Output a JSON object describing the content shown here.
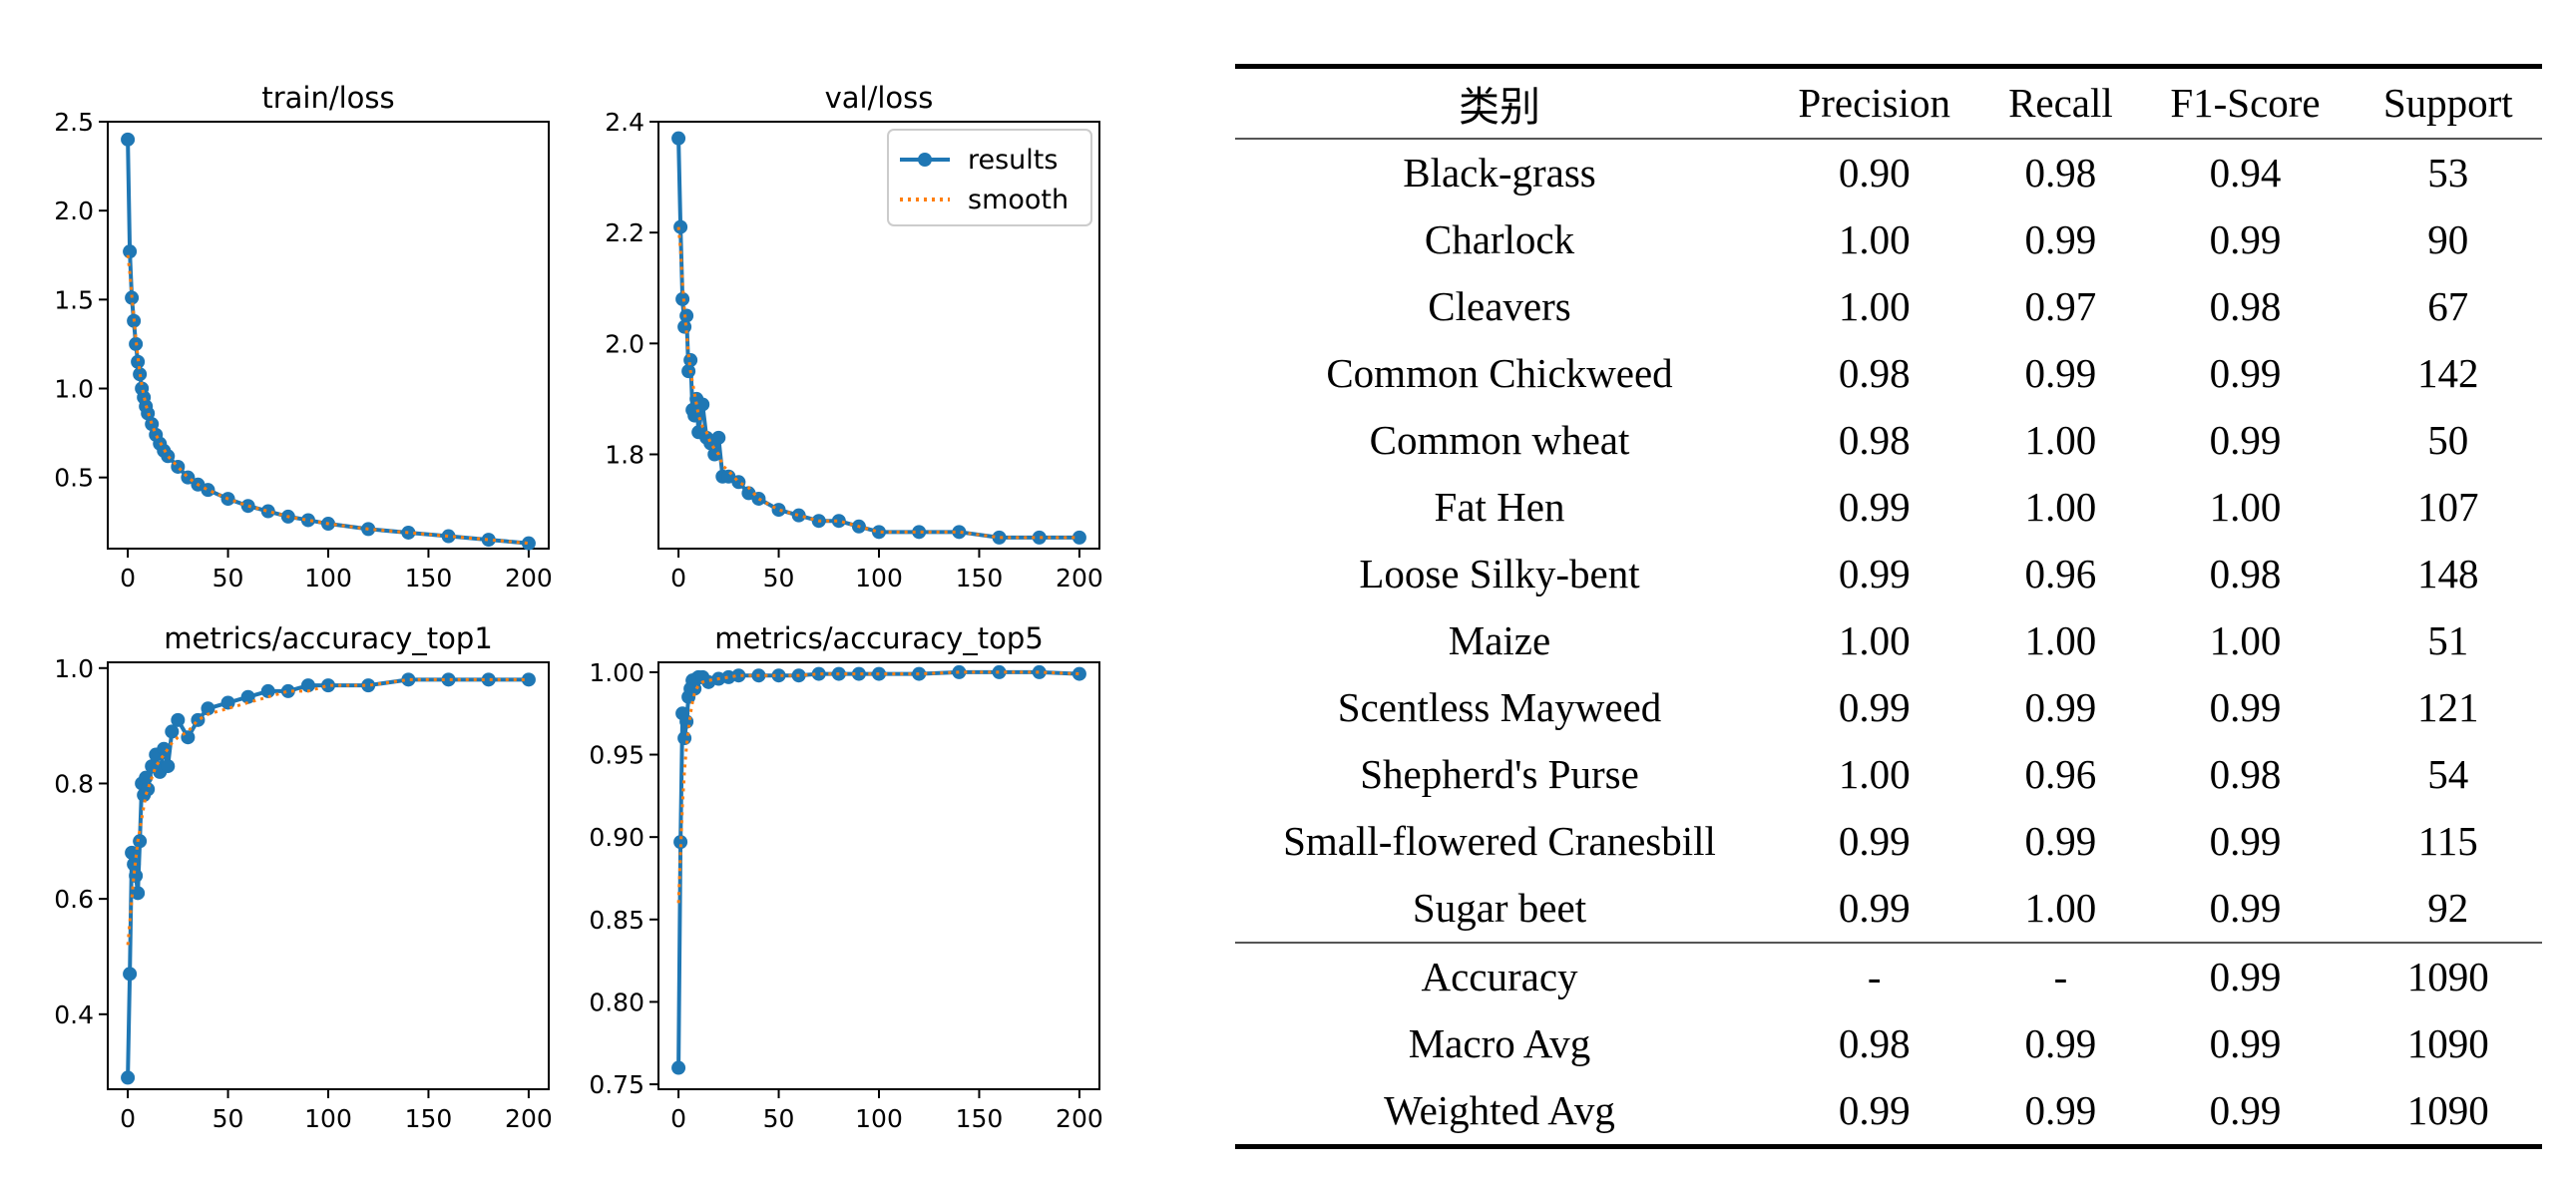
{
  "colors": {
    "results": "#1f77b4",
    "smooth": "#ff7f0e"
  },
  "chart_data": [
    {
      "type": "line",
      "title": "train/loss",
      "xlim": [
        -10,
        210
      ],
      "ylim": [
        0.1,
        2.5
      ],
      "xticks": [
        0,
        50,
        100,
        150,
        200
      ],
      "yticks": [
        0.5,
        1.0,
        1.5,
        2.0,
        2.5
      ],
      "ytick_labels": [
        "0.5",
        "1.0",
        "1.5",
        "2.0",
        "2.5"
      ],
      "grid": false,
      "legend": "none",
      "series": [
        {
          "name": "results",
          "kind": "points",
          "x": [
            0,
            1,
            2,
            3,
            4,
            5,
            6,
            7,
            8,
            9,
            10,
            12,
            14,
            16,
            18,
            20,
            25,
            30,
            35,
            40,
            50,
            60,
            70,
            80,
            90,
            100,
            120,
            140,
            160,
            180,
            200
          ],
          "y": [
            2.4,
            1.77,
            1.51,
            1.38,
            1.25,
            1.15,
            1.08,
            1.0,
            0.95,
            0.9,
            0.86,
            0.8,
            0.74,
            0.69,
            0.65,
            0.62,
            0.56,
            0.5,
            0.46,
            0.43,
            0.38,
            0.34,
            0.31,
            0.28,
            0.26,
            0.24,
            0.21,
            0.19,
            0.17,
            0.15,
            0.13
          ]
        },
        {
          "name": "smooth",
          "kind": "dotted",
          "x": [
            0,
            1,
            2,
            3,
            4,
            5,
            6,
            7,
            8,
            9,
            10,
            12,
            14,
            16,
            18,
            20,
            25,
            30,
            35,
            40,
            50,
            60,
            70,
            80,
            90,
            100,
            120,
            140,
            160,
            180,
            200
          ],
          "y": [
            1.75,
            1.65,
            1.52,
            1.4,
            1.28,
            1.18,
            1.09,
            1.02,
            0.96,
            0.91,
            0.87,
            0.8,
            0.74,
            0.7,
            0.66,
            0.62,
            0.56,
            0.5,
            0.46,
            0.43,
            0.38,
            0.34,
            0.31,
            0.28,
            0.26,
            0.24,
            0.21,
            0.19,
            0.17,
            0.15,
            0.13
          ]
        }
      ]
    },
    {
      "type": "line",
      "title": "val/loss",
      "xlim": [
        -10,
        210
      ],
      "ylim": [
        1.63,
        2.4
      ],
      "xticks": [
        0,
        50,
        100,
        150,
        200
      ],
      "yticks": [
        1.8,
        2.0,
        2.2,
        2.4
      ],
      "ytick_labels": [
        "1.8",
        "2.0",
        "2.2",
        "2.4"
      ],
      "grid": false,
      "legend": "top-right",
      "series": [
        {
          "name": "results",
          "kind": "points",
          "x": [
            0,
            1,
            2,
            3,
            4,
            5,
            6,
            7,
            8,
            9,
            10,
            12,
            14,
            16,
            18,
            20,
            22,
            25,
            30,
            35,
            40,
            50,
            60,
            70,
            80,
            90,
            100,
            120,
            140,
            160,
            180,
            200
          ],
          "y": [
            2.37,
            2.21,
            2.08,
            2.03,
            2.05,
            1.95,
            1.97,
            1.88,
            1.87,
            1.9,
            1.84,
            1.89,
            1.83,
            1.82,
            1.8,
            1.83,
            1.76,
            1.76,
            1.75,
            1.73,
            1.72,
            1.7,
            1.69,
            1.68,
            1.68,
            1.67,
            1.66,
            1.66,
            1.66,
            1.65,
            1.65,
            1.65
          ]
        },
        {
          "name": "smooth",
          "kind": "dotted",
          "x": [
            0,
            1,
            2,
            3,
            4,
            5,
            6,
            7,
            8,
            9,
            10,
            12,
            14,
            16,
            18,
            20,
            22,
            25,
            30,
            35,
            40,
            50,
            60,
            70,
            80,
            90,
            100,
            120,
            140,
            160,
            180,
            200
          ],
          "y": [
            2.21,
            2.17,
            2.11,
            2.06,
            2.02,
            1.98,
            1.95,
            1.93,
            1.91,
            1.89,
            1.87,
            1.85,
            1.84,
            1.82,
            1.81,
            1.8,
            1.78,
            1.77,
            1.75,
            1.74,
            1.72,
            1.7,
            1.69,
            1.68,
            1.68,
            1.67,
            1.66,
            1.66,
            1.66,
            1.65,
            1.65,
            1.65
          ]
        }
      ]
    },
    {
      "type": "line",
      "title": "metrics/accuracy_top1",
      "xlim": [
        -10,
        210
      ],
      "ylim": [
        0.27,
        1.01
      ],
      "xticks": [
        0,
        50,
        100,
        150,
        200
      ],
      "yticks": [
        0.4,
        0.6,
        0.8,
        1.0
      ],
      "ytick_labels": [
        "0.4",
        "0.6",
        "0.8",
        "1.0"
      ],
      "grid": false,
      "legend": "none",
      "series": [
        {
          "name": "results",
          "kind": "points",
          "x": [
            0,
            1,
            2,
            3,
            4,
            5,
            6,
            7,
            8,
            9,
            10,
            12,
            14,
            16,
            18,
            20,
            22,
            25,
            30,
            35,
            40,
            50,
            60,
            70,
            80,
            90,
            100,
            120,
            140,
            160,
            180,
            200
          ],
          "y": [
            0.29,
            0.47,
            0.68,
            0.66,
            0.64,
            0.61,
            0.7,
            0.8,
            0.78,
            0.81,
            0.79,
            0.83,
            0.85,
            0.82,
            0.86,
            0.83,
            0.89,
            0.91,
            0.88,
            0.91,
            0.93,
            0.94,
            0.95,
            0.96,
            0.96,
            0.97,
            0.97,
            0.97,
            0.98,
            0.98,
            0.98,
            0.98
          ]
        },
        {
          "name": "smooth",
          "kind": "dotted",
          "x": [
            0,
            1,
            2,
            3,
            4,
            5,
            6,
            7,
            8,
            9,
            10,
            12,
            14,
            16,
            18,
            20,
            22,
            25,
            30,
            35,
            40,
            50,
            60,
            70,
            80,
            90,
            100,
            120,
            140,
            160,
            180,
            200
          ],
          "y": [
            0.52,
            0.56,
            0.6,
            0.64,
            0.67,
            0.7,
            0.72,
            0.74,
            0.76,
            0.78,
            0.79,
            0.81,
            0.83,
            0.84,
            0.85,
            0.86,
            0.87,
            0.88,
            0.89,
            0.91,
            0.92,
            0.93,
            0.94,
            0.95,
            0.96,
            0.96,
            0.97,
            0.97,
            0.98,
            0.98,
            0.98,
            0.98
          ]
        }
      ]
    },
    {
      "type": "line",
      "title": "metrics/accuracy_top5",
      "xlim": [
        -10,
        210
      ],
      "ylim": [
        0.747,
        1.006
      ],
      "xticks": [
        0,
        50,
        100,
        150,
        200
      ],
      "yticks": [
        0.75,
        0.8,
        0.85,
        0.9,
        0.95,
        1.0
      ],
      "ytick_labels": [
        "0.75",
        "0.80",
        "0.85",
        "0.90",
        "0.95",
        "1.00"
      ],
      "grid": false,
      "legend": "none",
      "series": [
        {
          "name": "results",
          "kind": "points",
          "x": [
            0,
            1,
            2,
            3,
            4,
            5,
            6,
            7,
            8,
            9,
            10,
            12,
            15,
            20,
            25,
            30,
            40,
            50,
            60,
            70,
            80,
            90,
            100,
            120,
            140,
            160,
            180,
            200
          ],
          "y": [
            0.76,
            0.897,
            0.975,
            0.96,
            0.97,
            0.985,
            0.99,
            0.995,
            0.99,
            0.996,
            0.997,
            0.997,
            0.994,
            0.996,
            0.997,
            0.998,
            0.998,
            0.998,
            0.998,
            0.999,
            0.999,
            0.999,
            0.999,
            0.999,
            1.0,
            1.0,
            1.0,
            0.999
          ]
        },
        {
          "name": "smooth",
          "kind": "dotted",
          "x": [
            0,
            1,
            2,
            3,
            4,
            5,
            6,
            7,
            8,
            9,
            10,
            12,
            15,
            20,
            25,
            30,
            40,
            50,
            60,
            70,
            80,
            90,
            100,
            120,
            140,
            160,
            180,
            200
          ],
          "y": [
            0.86,
            0.89,
            0.92,
            0.94,
            0.955,
            0.965,
            0.975,
            0.982,
            0.987,
            0.99,
            0.992,
            0.994,
            0.995,
            0.996,
            0.997,
            0.998,
            0.998,
            0.998,
            0.998,
            0.999,
            0.999,
            0.999,
            0.999,
            0.999,
            1.0,
            1.0,
            1.0,
            0.999
          ]
        }
      ]
    },
    {
      "type": "table",
      "columns": [
        "类别",
        "Precision",
        "Recall",
        "F1-Score",
        "Support"
      ],
      "rows": [
        [
          "Black-grass",
          "0.90",
          "0.98",
          "0.94",
          "53"
        ],
        [
          "Charlock",
          "1.00",
          "0.99",
          "0.99",
          "90"
        ],
        [
          "Cleavers",
          "1.00",
          "0.97",
          "0.98",
          "67"
        ],
        [
          "Common Chickweed",
          "0.98",
          "0.99",
          "0.99",
          "142"
        ],
        [
          "Common wheat",
          "0.98",
          "1.00",
          "0.99",
          "50"
        ],
        [
          "Fat Hen",
          "0.99",
          "1.00",
          "1.00",
          "107"
        ],
        [
          "Loose Silky-bent",
          "0.99",
          "0.96",
          "0.98",
          "148"
        ],
        [
          "Maize",
          "1.00",
          "1.00",
          "1.00",
          "51"
        ],
        [
          "Scentless Mayweed",
          "0.99",
          "0.99",
          "0.99",
          "121"
        ],
        [
          "Shepherd's Purse",
          "1.00",
          "0.96",
          "0.98",
          "54"
        ],
        [
          "Small-flowered Cranesbill",
          "0.99",
          "0.99",
          "0.99",
          "115"
        ],
        [
          "Sugar beet",
          "0.99",
          "1.00",
          "0.99",
          "92"
        ]
      ],
      "summary_rows": [
        [
          "Accuracy",
          "-",
          "-",
          "0.99",
          "1090"
        ],
        [
          "Macro Avg",
          "0.98",
          "0.99",
          "0.99",
          "1090"
        ],
        [
          "Weighted Avg",
          "0.99",
          "0.99",
          "0.99",
          "1090"
        ]
      ]
    }
  ]
}
